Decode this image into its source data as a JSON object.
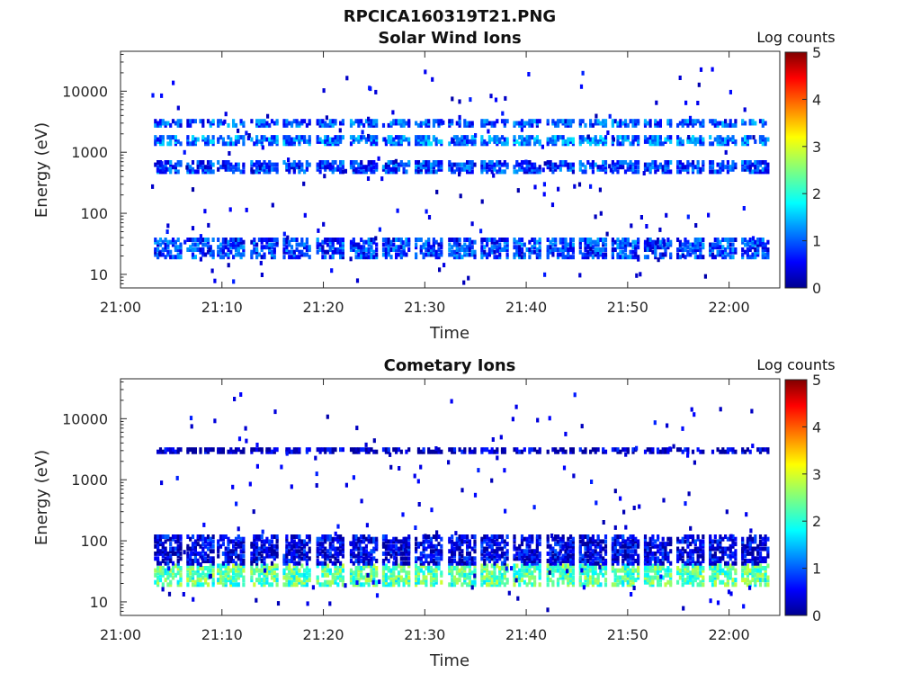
{
  "figure_title": "RPCICA160319T21.PNG",
  "chart_data": [
    {
      "type": "heatmap",
      "title": "Solar Wind Ions",
      "xlabel": "Time",
      "ylabel": "Energy (eV)",
      "yscale": "log",
      "ylim": [
        6,
        45000
      ],
      "xlim": [
        "21:00",
        "22:05"
      ],
      "xticks": [
        "21:00",
        "21:10",
        "21:20",
        "21:30",
        "21:40",
        "21:50",
        "22:00"
      ],
      "yticks": [
        "10",
        "100",
        "1000",
        "10000"
      ],
      "colorbar": {
        "label": "Log counts",
        "ticks": [
          "0",
          "1",
          "2",
          "3",
          "4",
          "5"
        ],
        "range": [
          0,
          5
        ],
        "colormap": "jet"
      },
      "sweep_start_minutes": [
        3.3,
        6.5,
        9.5,
        12.8,
        16.0,
        19.3,
        22.6,
        25.8,
        29.0,
        32.3,
        35.5,
        38.7,
        42.0,
        45.2,
        48.4,
        51.6,
        54.8,
        58.0,
        61.2
      ],
      "bands": [
        {
          "energy_min_eV": 18,
          "energy_max_eV": 38,
          "log_counts": 0.9
        },
        {
          "energy_min_eV": 450,
          "energy_max_eV": 700,
          "log_counts": 0.9
        },
        {
          "energy_min_eV": 1300,
          "energy_max_eV": 1800,
          "log_counts": 1.2
        },
        {
          "energy_min_eV": 2600,
          "energy_max_eV": 3300,
          "log_counts": 1.0
        }
      ]
    },
    {
      "type": "heatmap",
      "title": "Cometary Ions",
      "xlabel": "Time",
      "ylabel": "Energy (eV)",
      "yscale": "log",
      "ylim": [
        6,
        45000
      ],
      "xlim": [
        "21:00",
        "22:05"
      ],
      "xticks": [
        "21:00",
        "21:10",
        "21:20",
        "21:30",
        "21:40",
        "21:50",
        "22:00"
      ],
      "yticks": [
        "10",
        "100",
        "1000",
        "10000"
      ],
      "colorbar": {
        "label": "Log counts",
        "ticks": [
          "0",
          "1",
          "2",
          "3",
          "4",
          "5"
        ],
        "range": [
          0,
          5
        ],
        "colormap": "jet"
      },
      "sweep_start_minutes": [
        3.3,
        6.5,
        9.5,
        12.8,
        16.0,
        19.3,
        22.6,
        25.8,
        29.0,
        32.3,
        35.5,
        38.7,
        42.0,
        45.2,
        48.4,
        51.6,
        54.8,
        58.0,
        61.2
      ],
      "bands": [
        {
          "energy_min_eV": 18,
          "energy_max_eV": 40,
          "log_counts": 2.3
        },
        {
          "energy_min_eV": 40,
          "energy_max_eV": 120,
          "log_counts": 0.5
        },
        {
          "energy_min_eV": 2700,
          "energy_max_eV": 3200,
          "log_counts": 0.3
        }
      ]
    }
  ]
}
